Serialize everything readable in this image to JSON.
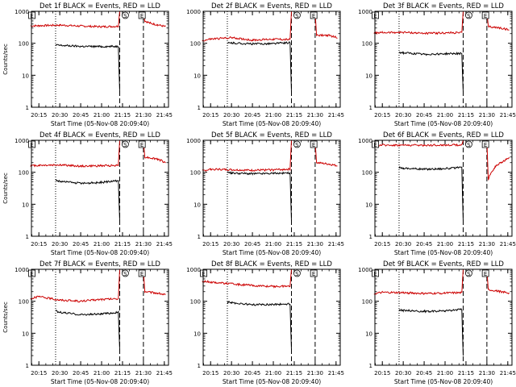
{
  "chart_data": [
    {
      "type": "line",
      "title": "Det 1f BLACK = Events, RED = LLD",
      "xlabel": "Start Time (05-Nov-08 20:09:40)",
      "ylabel": "Counts/sec",
      "yscale": "log",
      "ylim": [
        1,
        1000
      ],
      "xlim": [
        "20:09:40",
        "21:48:00"
      ],
      "x_ticks": [
        "20:15",
        "20:30",
        "20:45",
        "21:00",
        "21:15",
        "21:30",
        "21:45"
      ],
      "y_ticks": [
        "1",
        "10",
        "100",
        "1000"
      ],
      "series": [
        {
          "color": "#cc0000",
          "x": [
            "20:09",
            "20:15",
            "20:30",
            "20:45",
            "21:00",
            "21:12",
            "21:13",
            "21:14",
            "21:30",
            "21:31",
            "21:35",
            "21:40",
            "21:46"
          ],
          "y": [
            350,
            355,
            370,
            345,
            330,
            340,
            1000,
            1000,
            1000,
            500,
            420,
            380,
            330
          ],
          "gaps": [
            [
              21.22,
              21.48
            ]
          ]
        },
        {
          "color": "#000000",
          "x": [
            "20:27",
            "20:30",
            "20:45",
            "21:00",
            "21:12",
            "21:13"
          ],
          "y": [
            88,
            86,
            80,
            79,
            80,
            3
          ],
          "gaps": []
        }
      ],
      "vlines": [
        {
          "x": "20:27",
          "style": "dotted"
        },
        {
          "x": "21:13",
          "style": "dashed"
        },
        {
          "x": "21:30",
          "style": "dashed"
        }
      ],
      "annotations": [
        {
          "text": "E",
          "x": "20:10"
        },
        {
          "text": "S",
          "x": "21:17"
        },
        {
          "text": "E",
          "x": "21:29"
        }
      ]
    },
    {
      "type": "line",
      "title": "Det 2f BLACK = Events, RED = LLD",
      "xlabel": "Start Time (05-Nov-08 20:09:40)",
      "ylabel": "",
      "yscale": "log",
      "ylim": [
        1,
        1000
      ],
      "xlim": [
        "20:09:40",
        "21:48:00"
      ],
      "x_ticks": [
        "20:15",
        "20:30",
        "20:45",
        "21:00",
        "21:15",
        "21:30",
        "21:45"
      ],
      "y_ticks": [
        "1",
        "10",
        "100",
        "1000"
      ],
      "series": [
        {
          "color": "#cc0000",
          "x": [
            "20:09",
            "20:15",
            "20:30",
            "20:45",
            "21:00",
            "21:12",
            "21:13",
            "21:14",
            "21:30",
            "21:31",
            "21:40",
            "21:46"
          ],
          "y": [
            120,
            135,
            150,
            125,
            135,
            130,
            1000,
            1000,
            1000,
            180,
            175,
            150
          ],
          "gaps": [
            [
              21.22,
              21.48
            ]
          ]
        },
        {
          "color": "#000000",
          "x": [
            "20:27",
            "20:30",
            "20:45",
            "21:00",
            "21:12",
            "21:13"
          ],
          "y": [
            100,
            102,
            95,
            98,
            105,
            3
          ],
          "gaps": []
        }
      ],
      "vlines": [
        {
          "x": "20:27",
          "style": "dotted"
        },
        {
          "x": "21:13",
          "style": "dashed"
        },
        {
          "x": "21:30",
          "style": "dashed"
        }
      ],
      "annotations": [
        {
          "text": "S",
          "x": "21:17"
        },
        {
          "text": "E",
          "x": "21:29"
        }
      ]
    },
    {
      "type": "line",
      "title": "Det 3f BLACK = Events, RED = LLD",
      "xlabel": "Start Time (05-Nov-08 20:09:40)",
      "ylabel": "",
      "yscale": "log",
      "ylim": [
        1,
        1000
      ],
      "xlim": [
        "20:09:40",
        "21:48:00"
      ],
      "x_ticks": [
        "20:15",
        "20:30",
        "20:45",
        "21:00",
        "21:15",
        "21:30",
        "21:45"
      ],
      "y_ticks": [
        "1",
        "10",
        "100",
        "1000"
      ],
      "series": [
        {
          "color": "#cc0000",
          "x": [
            "20:09",
            "20:15",
            "20:30",
            "20:45",
            "21:00",
            "21:12",
            "21:13",
            "21:14",
            "21:30",
            "21:31",
            "21:40",
            "21:46"
          ],
          "y": [
            210,
            215,
            220,
            205,
            210,
            215,
            1000,
            1000,
            1000,
            330,
            300,
            260
          ],
          "gaps": [
            [
              21.22,
              21.48
            ]
          ]
        },
        {
          "color": "#000000",
          "x": [
            "20:27",
            "20:30",
            "20:45",
            "21:00",
            "21:12",
            "21:13"
          ],
          "y": [
            52,
            50,
            45,
            47,
            48,
            3
          ],
          "gaps": []
        }
      ],
      "vlines": [
        {
          "x": "20:27",
          "style": "dotted"
        },
        {
          "x": "21:13",
          "style": "dashed"
        },
        {
          "x": "21:30",
          "style": "dashed"
        }
      ],
      "annotations": [
        {
          "text": "E",
          "x": "20:10"
        },
        {
          "text": "S",
          "x": "21:17"
        },
        {
          "text": "E",
          "x": "21:29"
        }
      ]
    },
    {
      "type": "line",
      "title": "Det 4f BLACK = Events, RED = LLD",
      "xlabel": "Start Time (05-Nov-08 20:09:40)",
      "ylabel": "Counts/sec",
      "yscale": "log",
      "ylim": [
        1,
        1000
      ],
      "xlim": [
        "20:09:40",
        "21:48:00"
      ],
      "x_ticks": [
        "20:15",
        "20:30",
        "20:45",
        "21:00",
        "21:15",
        "21:30",
        "21:45"
      ],
      "y_ticks": [
        "1",
        "10",
        "100",
        "1000"
      ],
      "series": [
        {
          "color": "#cc0000",
          "x": [
            "20:09",
            "20:15",
            "20:30",
            "20:45",
            "21:00",
            "21:12",
            "21:13",
            "21:14",
            "21:30",
            "21:31",
            "21:40",
            "21:46"
          ],
          "y": [
            160,
            165,
            170,
            155,
            160,
            165,
            1000,
            1000,
            1000,
            300,
            260,
            200
          ],
          "gaps": [
            [
              21.22,
              21.48
            ]
          ]
        },
        {
          "color": "#000000",
          "x": [
            "20:27",
            "20:30",
            "20:45",
            "21:00",
            "21:12",
            "21:13"
          ],
          "y": [
            57,
            52,
            45,
            48,
            55,
            3
          ],
          "gaps": []
        }
      ],
      "vlines": [
        {
          "x": "20:27",
          "style": "dotted"
        },
        {
          "x": "21:13",
          "style": "dashed"
        },
        {
          "x": "21:30",
          "style": "dashed"
        }
      ],
      "annotations": [
        {
          "text": "E",
          "x": "20:10"
        },
        {
          "text": "S",
          "x": "21:17"
        },
        {
          "text": "E",
          "x": "21:29"
        }
      ]
    },
    {
      "type": "line",
      "title": "Det 5f BLACK = Events, RED = LLD",
      "xlabel": "Start Time (05-Nov-08 20:09:40)",
      "ylabel": "",
      "yscale": "log",
      "ylim": [
        1,
        1000
      ],
      "xlim": [
        "20:09:40",
        "21:48:00"
      ],
      "x_ticks": [
        "20:15",
        "20:30",
        "20:45",
        "21:00",
        "21:15",
        "21:30",
        "21:45"
      ],
      "y_ticks": [
        "1",
        "10",
        "100",
        "1000"
      ],
      "series": [
        {
          "color": "#cc0000",
          "x": [
            "20:09",
            "20:15",
            "20:30",
            "20:45",
            "21:00",
            "21:12",
            "21:13",
            "21:14",
            "21:30",
            "21:31",
            "21:40",
            "21:46"
          ],
          "y": [
            110,
            125,
            120,
            115,
            120,
            125,
            1000,
            1000,
            1000,
            200,
            180,
            160
          ],
          "gaps": [
            [
              21.22,
              21.48
            ]
          ]
        },
        {
          "color": "#000000",
          "x": [
            "20:27",
            "20:30",
            "20:45",
            "21:00",
            "21:12",
            "21:13"
          ],
          "y": [
            100,
            95,
            90,
            92,
            95,
            3
          ],
          "gaps": []
        }
      ],
      "vlines": [
        {
          "x": "20:27",
          "style": "dotted"
        },
        {
          "x": "21:13",
          "style": "dashed"
        },
        {
          "x": "21:30",
          "style": "dashed"
        }
      ],
      "annotations": [
        {
          "text": "S",
          "x": "21:17"
        },
        {
          "text": "E",
          "x": "21:29"
        }
      ]
    },
    {
      "type": "line",
      "title": "Det 6f BLACK = Events, RED = LLD",
      "xlabel": "Start Time (05-Nov-08 20:09:40)",
      "ylabel": "",
      "yscale": "log",
      "ylim": [
        1,
        1000
      ],
      "xlim": [
        "20:09:40",
        "21:48:00"
      ],
      "x_ticks": [
        "20:15",
        "20:30",
        "20:45",
        "21:00",
        "21:15",
        "21:30",
        "21:45"
      ],
      "y_ticks": [
        "1",
        "10",
        "100",
        "1000"
      ],
      "series": [
        {
          "color": "#cc0000",
          "x": [
            "20:09",
            "20:15",
            "20:30",
            "20:45",
            "21:00",
            "21:12",
            "21:13",
            "21:14",
            "21:30",
            "21:31",
            "21:32",
            "21:36",
            "21:40",
            "21:46"
          ],
          "y": [
            700,
            710,
            705,
            700,
            710,
            715,
            1000,
            1000,
            1000,
            60,
            80,
            150,
            200,
            280
          ],
          "gaps": [
            [
              21.22,
              21.48
            ]
          ]
        },
        {
          "color": "#000000",
          "x": [
            "20:27",
            "20:30",
            "20:45",
            "21:00",
            "21:12",
            "21:13"
          ],
          "y": [
            140,
            135,
            125,
            130,
            140,
            3
          ],
          "gaps": []
        }
      ],
      "vlines": [
        {
          "x": "20:27",
          "style": "dotted"
        },
        {
          "x": "21:13",
          "style": "dashed"
        },
        {
          "x": "21:30",
          "style": "dashed"
        }
      ],
      "annotations": [
        {
          "text": "E",
          "x": "20:10"
        },
        {
          "text": "S",
          "x": "21:17"
        },
        {
          "text": "E",
          "x": "21:29"
        }
      ]
    },
    {
      "type": "line",
      "title": "Det 7f BLACK = Events, RED = LLD",
      "xlabel": "Start Time (05-Nov-08 20:09:40)",
      "ylabel": "Counts/sec",
      "yscale": "log",
      "ylim": [
        1,
        1000
      ],
      "xlim": [
        "20:09:40",
        "21:48:00"
      ],
      "x_ticks": [
        "20:15",
        "20:30",
        "20:45",
        "21:00",
        "21:15",
        "21:30",
        "21:45"
      ],
      "y_ticks": [
        "1",
        "10",
        "100",
        "1000"
      ],
      "series": [
        {
          "color": "#cc0000",
          "x": [
            "20:09",
            "20:15",
            "20:30",
            "20:45",
            "21:00",
            "21:12",
            "21:13",
            "21:14",
            "21:30",
            "21:31",
            "21:40",
            "21:46"
          ],
          "y": [
            120,
            140,
            110,
            100,
            115,
            120,
            1000,
            1000,
            1000,
            200,
            180,
            160
          ],
          "gaps": [
            [
              21.22,
              21.48
            ]
          ]
        },
        {
          "color": "#000000",
          "x": [
            "20:27",
            "20:30",
            "20:45",
            "21:00",
            "21:12",
            "21:13"
          ],
          "y": [
            50,
            45,
            38,
            40,
            45,
            3
          ],
          "gaps": []
        }
      ],
      "vlines": [
        {
          "x": "20:27",
          "style": "dotted"
        },
        {
          "x": "21:13",
          "style": "dashed"
        },
        {
          "x": "21:30",
          "style": "dashed"
        }
      ],
      "annotations": [
        {
          "text": "E",
          "x": "20:10"
        },
        {
          "text": "S",
          "x": "21:17"
        },
        {
          "text": "E",
          "x": "21:29"
        }
      ]
    },
    {
      "type": "line",
      "title": "Det 8f BLACK = Events, RED = LLD",
      "xlabel": "Start Time (05-Nov-08 20:09:40)",
      "ylabel": "",
      "yscale": "log",
      "ylim": [
        1,
        1000
      ],
      "xlim": [
        "20:09:40",
        "21:48:00"
      ],
      "x_ticks": [
        "20:15",
        "20:30",
        "20:45",
        "21:00",
        "21:15",
        "21:30",
        "21:45"
      ],
      "y_ticks": [
        "1",
        "10",
        "100",
        "1000"
      ],
      "series": [
        {
          "color": "#cc0000",
          "x": [
            "20:09",
            "20:15",
            "20:30",
            "20:45",
            "21:00",
            "21:12",
            "21:13",
            "21:14",
            "21:30",
            "21:31",
            "21:46"
          ],
          "y": [
            420,
            400,
            350,
            310,
            290,
            300,
            1000,
            1000,
            1000,
            1000,
            1000
          ],
          "gaps": [
            [
              21.22,
              21.48
            ]
          ]
        },
        {
          "color": "#000000",
          "x": [
            "20:27",
            "20:30",
            "20:45",
            "21:00",
            "21:12",
            "21:13"
          ],
          "y": [
            95,
            90,
            78,
            80,
            82,
            3
          ],
          "gaps": []
        }
      ],
      "vlines": [
        {
          "x": "20:27",
          "style": "dotted"
        },
        {
          "x": "21:13",
          "style": "dashed"
        },
        {
          "x": "21:30",
          "style": "dashed"
        }
      ],
      "annotations": [
        {
          "text": "E",
          "x": "20:10"
        },
        {
          "text": "S",
          "x": "21:17"
        },
        {
          "text": "E",
          "x": "21:29"
        }
      ]
    },
    {
      "type": "line",
      "title": "Det 9f BLACK = Events, RED = LLD",
      "xlabel": "Start Time (05-Nov-08 20:09:40)",
      "ylabel": "",
      "yscale": "log",
      "ylim": [
        1,
        1000
      ],
      "xlim": [
        "20:09:40",
        "21:48:00"
      ],
      "x_ticks": [
        "20:15",
        "20:30",
        "20:45",
        "21:00",
        "21:15",
        "21:30",
        "21:45"
      ],
      "y_ticks": [
        "1",
        "10",
        "100",
        "1000"
      ],
      "series": [
        {
          "color": "#cc0000",
          "x": [
            "20:09",
            "20:15",
            "20:30",
            "20:45",
            "21:00",
            "21:12",
            "21:13",
            "21:14",
            "21:30",
            "21:31",
            "21:40",
            "21:46"
          ],
          "y": [
            170,
            190,
            185,
            175,
            180,
            185,
            1000,
            1000,
            1000,
            230,
            200,
            180
          ],
          "gaps": [
            [
              21.22,
              21.48
            ]
          ]
        },
        {
          "color": "#000000",
          "x": [
            "20:27",
            "20:30",
            "20:45",
            "21:00",
            "21:12",
            "21:13"
          ],
          "y": [
            55,
            52,
            48,
            50,
            55,
            2
          ],
          "gaps": []
        }
      ],
      "vlines": [
        {
          "x": "20:27",
          "style": "dotted"
        },
        {
          "x": "21:13",
          "style": "dashed"
        },
        {
          "x": "21:30",
          "style": "dashed"
        }
      ],
      "annotations": [
        {
          "text": "E",
          "x": "20:10"
        },
        {
          "text": "S",
          "x": "21:17"
        },
        {
          "text": "E",
          "x": "21:29"
        }
      ]
    }
  ]
}
